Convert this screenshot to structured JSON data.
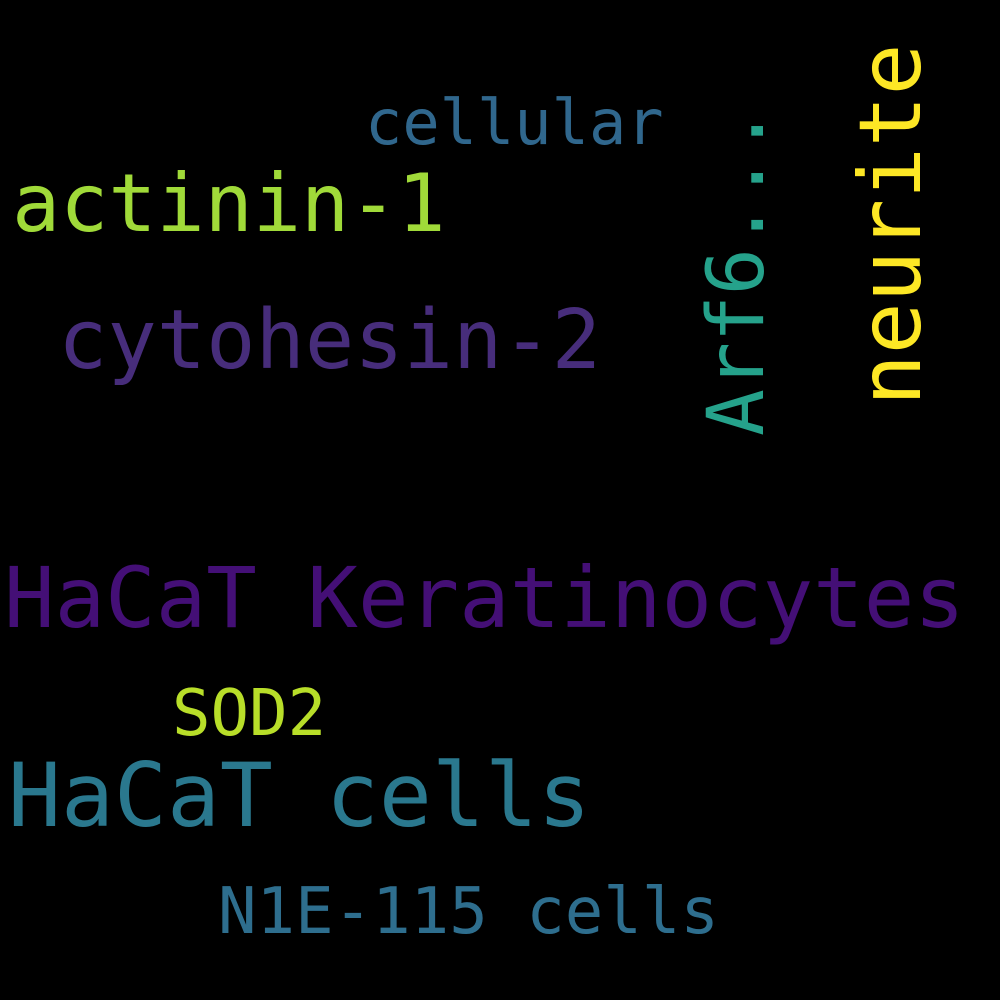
{
  "background_color": "#000000",
  "words": [
    {
      "id": "w-cellular",
      "text": "cellular",
      "color": "#30678d"
    },
    {
      "id": "w-actinin",
      "text": "actinin-1",
      "color": "#a0da39"
    },
    {
      "id": "w-cytohesin",
      "text": "cytohesin-2",
      "color": "#472d7b"
    },
    {
      "id": "w-arf6",
      "text": "Arf6...",
      "color": "#25a28b",
      "orientation": "vertical"
    },
    {
      "id": "w-neurite",
      "text": "neurite",
      "color": "#fde725",
      "orientation": "vertical"
    },
    {
      "id": "w-keratinocytes",
      "text": "HaCaT Keratinocytes",
      "color": "#440f76"
    },
    {
      "id": "w-sod2",
      "text": "SOD2",
      "color": "#b8de29"
    },
    {
      "id": "w-hacat-cells",
      "text": "HaCaT cells",
      "color": "#2a788e"
    },
    {
      "id": "w-n1e",
      "text": "N1E-115 cells",
      "color": "#2e6e8e"
    }
  ]
}
